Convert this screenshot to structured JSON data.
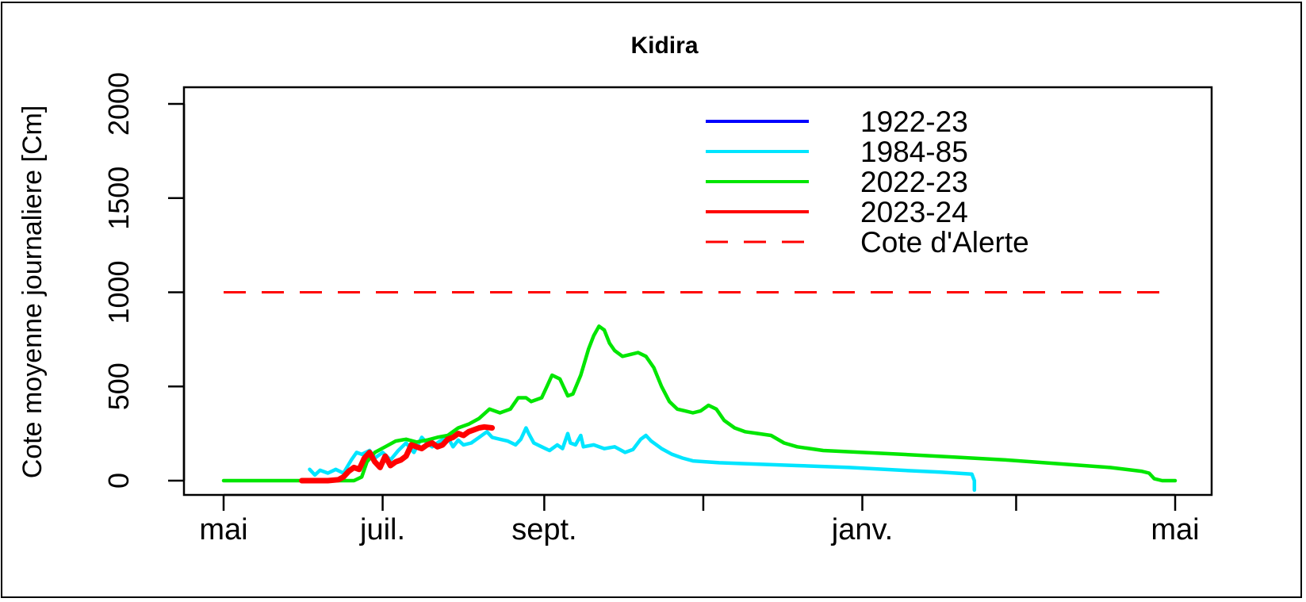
{
  "chart_data": {
    "type": "line",
    "title": "Kidira",
    "xlabel": "",
    "ylabel": "Cote moyenne journaliere [Cm]",
    "x_unit": "day of hydrological year (0 = 1 May)",
    "xlim": [
      0,
      365
    ],
    "ylim": [
      0,
      2000
    ],
    "x_ticks": [
      {
        "pos": 0,
        "label": "mai"
      },
      {
        "pos": 61,
        "label": "juil."
      },
      {
        "pos": 123,
        "label": "sept."
      },
      {
        "pos": 184,
        "label": ""
      },
      {
        "pos": 245,
        "label": "janv."
      },
      {
        "pos": 304,
        "label": ""
      },
      {
        "pos": 365,
        "label": "mai"
      }
    ],
    "y_ticks": [
      0,
      500,
      1000,
      1500,
      2000
    ],
    "grid": false,
    "legend_position": "top-right",
    "series": [
      {
        "name": "1922-23",
        "color": "#0000ff",
        "style": "solid",
        "points": []
      },
      {
        "name": "1984-85",
        "color": "#00e5ff",
        "style": "solid",
        "points": [
          [
            33,
            60
          ],
          [
            35,
            30
          ],
          [
            37,
            55
          ],
          [
            40,
            40
          ],
          [
            43,
            60
          ],
          [
            46,
            40
          ],
          [
            49,
            110
          ],
          [
            51,
            150
          ],
          [
            53,
            140
          ],
          [
            56,
            160
          ],
          [
            58,
            120
          ],
          [
            61,
            150
          ],
          [
            64,
            110
          ],
          [
            67,
            160
          ],
          [
            70,
            200
          ],
          [
            73,
            150
          ],
          [
            76,
            230
          ],
          [
            78,
            200
          ],
          [
            80,
            180
          ],
          [
            83,
            210
          ],
          [
            86,
            230
          ],
          [
            88,
            180
          ],
          [
            90,
            215
          ],
          [
            92,
            190
          ],
          [
            95,
            200
          ],
          [
            98,
            230
          ],
          [
            101,
            260
          ],
          [
            103,
            230
          ],
          [
            106,
            220
          ],
          [
            109,
            210
          ],
          [
            112,
            190
          ],
          [
            114,
            220
          ],
          [
            116,
            280
          ],
          [
            117,
            250
          ],
          [
            119,
            200
          ],
          [
            122,
            180
          ],
          [
            125,
            160
          ],
          [
            128,
            190
          ],
          [
            130,
            170
          ],
          [
            132,
            250
          ],
          [
            133,
            200
          ],
          [
            135,
            190
          ],
          [
            137,
            240
          ],
          [
            138,
            180
          ],
          [
            142,
            190
          ],
          [
            146,
            170
          ],
          [
            150,
            180
          ],
          [
            154,
            150
          ],
          [
            157,
            165
          ],
          [
            160,
            220
          ],
          [
            162,
            240
          ],
          [
            164,
            210
          ],
          [
            168,
            170
          ],
          [
            172,
            140
          ],
          [
            176,
            120
          ],
          [
            180,
            105
          ],
          [
            185,
            100
          ],
          [
            190,
            95
          ],
          [
            200,
            90
          ],
          [
            220,
            80
          ],
          [
            240,
            70
          ],
          [
            260,
            55
          ],
          [
            275,
            45
          ],
          [
            287,
            35
          ],
          [
            288,
            0
          ],
          [
            288,
            -50
          ]
        ]
      },
      {
        "name": "2022-23",
        "color": "#00e600",
        "style": "solid",
        "points": [
          [
            0,
            0
          ],
          [
            30,
            0
          ],
          [
            45,
            0
          ],
          [
            50,
            0
          ],
          [
            53,
            20
          ],
          [
            55,
            100
          ],
          [
            58,
            150
          ],
          [
            62,
            180
          ],
          [
            66,
            210
          ],
          [
            70,
            220
          ],
          [
            74,
            205
          ],
          [
            78,
            215
          ],
          [
            82,
            230
          ],
          [
            86,
            240
          ],
          [
            90,
            280
          ],
          [
            94,
            300
          ],
          [
            98,
            330
          ],
          [
            102,
            380
          ],
          [
            106,
            360
          ],
          [
            110,
            380
          ],
          [
            113,
            440
          ],
          [
            116,
            440
          ],
          [
            118,
            420
          ],
          [
            122,
            440
          ],
          [
            124,
            500
          ],
          [
            126,
            560
          ],
          [
            129,
            540
          ],
          [
            132,
            450
          ],
          [
            134,
            460
          ],
          [
            137,
            560
          ],
          [
            140,
            700
          ],
          [
            142,
            770
          ],
          [
            144,
            820
          ],
          [
            146,
            800
          ],
          [
            148,
            730
          ],
          [
            150,
            690
          ],
          [
            153,
            660
          ],
          [
            156,
            670
          ],
          [
            159,
            680
          ],
          [
            162,
            660
          ],
          [
            165,
            600
          ],
          [
            168,
            500
          ],
          [
            171,
            420
          ],
          [
            174,
            380
          ],
          [
            177,
            370
          ],
          [
            180,
            360
          ],
          [
            183,
            370
          ],
          [
            186,
            400
          ],
          [
            189,
            380
          ],
          [
            192,
            320
          ],
          [
            196,
            280
          ],
          [
            200,
            260
          ],
          [
            205,
            250
          ],
          [
            210,
            240
          ],
          [
            215,
            200
          ],
          [
            220,
            180
          ],
          [
            230,
            160
          ],
          [
            245,
            150
          ],
          [
            260,
            140
          ],
          [
            280,
            125
          ],
          [
            300,
            110
          ],
          [
            320,
            90
          ],
          [
            340,
            70
          ],
          [
            352,
            50
          ],
          [
            355,
            40
          ],
          [
            357,
            10
          ],
          [
            360,
            0
          ],
          [
            365,
            0
          ]
        ]
      },
      {
        "name": "2023-24",
        "color": "#ff0000",
        "style": "solid",
        "points": [
          [
            30,
            0
          ],
          [
            35,
            0
          ],
          [
            40,
            0
          ],
          [
            44,
            5
          ],
          [
            46,
            20
          ],
          [
            48,
            50
          ],
          [
            50,
            70
          ],
          [
            52,
            60
          ],
          [
            54,
            120
          ],
          [
            56,
            150
          ],
          [
            58,
            100
          ],
          [
            60,
            70
          ],
          [
            62,
            130
          ],
          [
            64,
            80
          ],
          [
            66,
            100
          ],
          [
            68,
            110
          ],
          [
            70,
            130
          ],
          [
            72,
            190
          ],
          [
            74,
            180
          ],
          [
            76,
            170
          ],
          [
            78,
            190
          ],
          [
            80,
            200
          ],
          [
            82,
            180
          ],
          [
            84,
            190
          ],
          [
            86,
            220
          ],
          [
            88,
            230
          ],
          [
            90,
            250
          ],
          [
            92,
            240
          ],
          [
            94,
            260
          ],
          [
            96,
            270
          ],
          [
            98,
            280
          ],
          [
            100,
            285
          ],
          [
            103,
            280
          ]
        ]
      },
      {
        "name": "Cote d'Alerte",
        "color": "#ff0000",
        "style": "dashed",
        "points": [
          [
            0,
            1000
          ],
          [
            365,
            1000
          ]
        ]
      }
    ]
  }
}
